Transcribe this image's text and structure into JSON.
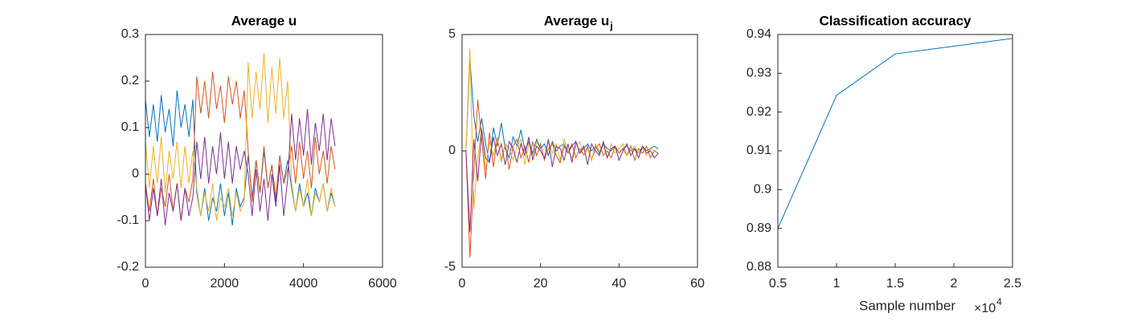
{
  "chart_data": [
    {
      "type": "line",
      "title": "Average u",
      "x": [
        0,
        100,
        200,
        300,
        400,
        500,
        600,
        700,
        800,
        900,
        1000,
        1100,
        1200,
        1300,
        1400,
        1500,
        1600,
        1700,
        1800,
        1900,
        2000,
        2100,
        2200,
        2300,
        2400,
        2500,
        2600,
        2700,
        2800,
        2900,
        3000,
        3100,
        3200,
        3300,
        3400,
        3500,
        3600,
        3700,
        3800,
        3900,
        4000,
        4100,
        4200,
        4300,
        4400,
        4500,
        4600,
        4700,
        4800
      ],
      "series": [
        {
          "color": "#0072bd",
          "values": [
            0.16,
            0.08,
            0.15,
            0.07,
            0.17,
            0.09,
            0.14,
            0.06,
            0.18,
            0.1,
            0.15,
            0.08,
            0.16,
            -0.04,
            -0.09,
            -0.03,
            -0.1,
            -0.05,
            -0.08,
            -0.02,
            -0.09,
            -0.04,
            -0.11,
            -0.03,
            -0.07,
            -0.05,
            0.04,
            -0.05,
            0.03,
            -0.04,
            0.05,
            -0.03,
            0.02,
            -0.06,
            0.04,
            -0.02,
            0.03,
            -0.03,
            -0.08,
            -0.02,
            -0.07,
            -0.04,
            -0.09,
            -0.03,
            -0.06,
            -0.02,
            -0.08,
            -0.04,
            -0.07
          ]
        },
        {
          "color": "#d95319",
          "values": [
            -0.02,
            -0.08,
            -0.01,
            -0.09,
            -0.03,
            -0.07,
            0.0,
            -0.08,
            -0.02,
            -0.1,
            -0.03,
            -0.06,
            -0.01,
            0.21,
            0.13,
            0.2,
            0.12,
            0.22,
            0.14,
            0.19,
            0.11,
            0.21,
            0.15,
            0.2,
            0.12,
            0.18,
            0.05,
            -0.06,
            0.03,
            -0.04,
            0.06,
            -0.03,
            0.02,
            -0.05,
            0.04,
            -0.02,
            0.01,
            0.06,
            -0.02,
            0.07,
            -0.01,
            0.05,
            -0.03,
            0.08,
            0.0,
            0.05,
            -0.02,
            0.06,
            0.01
          ]
        },
        {
          "color": "#edb120",
          "values": [
            0.07,
            -0.03,
            0.06,
            -0.02,
            0.08,
            -0.04,
            0.05,
            -0.01,
            0.07,
            -0.03,
            0.06,
            -0.02,
            0.05,
            -0.03,
            -0.09,
            -0.04,
            -0.08,
            -0.02,
            -0.1,
            -0.05,
            -0.07,
            -0.03,
            -0.09,
            -0.04,
            -0.08,
            -0.06,
            0.24,
            0.12,
            0.22,
            0.14,
            0.26,
            0.11,
            0.23,
            0.13,
            0.25,
            0.12,
            0.2,
            -0.02,
            -0.08,
            -0.03,
            -0.07,
            -0.01,
            -0.09,
            -0.04,
            -0.06,
            -0.02,
            -0.08,
            -0.03,
            -0.07
          ]
        },
        {
          "color": "#7e2f8e",
          "values": [
            -0.02,
            -0.1,
            -0.03,
            -0.09,
            -0.01,
            -0.11,
            -0.04,
            -0.08,
            -0.02,
            -0.1,
            -0.03,
            -0.09,
            -0.05,
            0.07,
            -0.01,
            0.08,
            -0.02,
            0.06,
            0.0,
            0.09,
            -0.01,
            0.07,
            -0.02,
            0.06,
            0.01,
            0.05,
            0.0,
            -0.09,
            0.01,
            -0.08,
            -0.01,
            -0.1,
            0.0,
            -0.07,
            0.02,
            -0.09,
            -0.01,
            0.13,
            0.03,
            0.12,
            0.04,
            0.14,
            0.02,
            0.11,
            0.05,
            0.13,
            0.03,
            0.12,
            0.06
          ]
        }
      ],
      "xlim": [
        0,
        6000
      ],
      "xticks": [
        0,
        2000,
        4000,
        6000
      ],
      "ylim": [
        -0.2,
        0.3
      ],
      "yticks": [
        -0.2,
        -0.1,
        0,
        0.1,
        0.2,
        0.3
      ]
    },
    {
      "type": "line",
      "title": "Average u",
      "title_subscript": "j",
      "x": [
        1,
        2,
        3,
        4,
        5,
        6,
        7,
        8,
        9,
        10,
        11,
        12,
        13,
        14,
        15,
        16,
        17,
        18,
        19,
        20,
        21,
        22,
        23,
        24,
        25,
        26,
        27,
        28,
        29,
        30,
        31,
        32,
        33,
        34,
        35,
        36,
        37,
        38,
        39,
        40,
        41,
        42,
        43,
        44,
        45,
        46,
        47,
        48,
        49,
        50
      ],
      "series": [
        {
          "color": "#0072bd",
          "values": [
            0,
            4.0,
            1.5,
            0.4,
            1.4,
            0.3,
            -0.5,
            1.0,
            0.2,
            1.2,
            0.1,
            -0.3,
            0.6,
            0.2,
            0.9,
            0.0,
            0.4,
            -0.1,
            0.5,
            0.1,
            0.3,
            -0.2,
            0.4,
            0.0,
            0.2,
            0.3,
            -0.1,
            0.2,
            0.4,
            -0.1,
            0.1,
            0.3,
            0.0,
            0.2,
            -0.1,
            0.3,
            0.1,
            0.0,
            0.2,
            -0.1,
            0.1,
            0.2,
            0.0,
            0.1,
            -0.1,
            0.2,
            0.0,
            0.1,
            0.2,
            0.1
          ]
        },
        {
          "color": "#d95319",
          "values": [
            0,
            -4.6,
            -1.0,
            2.2,
            0.5,
            -1.2,
            0.8,
            -0.7,
            0.6,
            -0.4,
            0.3,
            -0.8,
            0.2,
            0.5,
            -0.3,
            0.2,
            -0.5,
            0.4,
            -0.2,
            0.3,
            -0.4,
            0.1,
            0.3,
            -0.2,
            -0.5,
            0.2,
            -0.1,
            0.3,
            -0.3,
            0.1,
            -0.2,
            0.2,
            -0.4,
            0.1,
            0.3,
            -0.2,
            0.0,
            -0.3,
            0.2,
            -0.1,
            0.1,
            -0.2,
            0.2,
            -0.4,
            0.1,
            -0.1,
            0.2,
            -0.3,
            0.0,
            -0.1
          ]
        },
        {
          "color": "#edb120",
          "values": [
            0,
            4.4,
            -2.5,
            -0.3,
            1.0,
            -0.8,
            0.4,
            -0.2,
            0.6,
            -0.5,
            0.3,
            0.1,
            -0.4,
            0.2,
            0.5,
            -0.6,
            0.3,
            -0.2,
            0.4,
            0.0,
            -0.3,
            0.4,
            -0.1,
            0.3,
            -0.4,
            0.5,
            0.0,
            -0.3,
            0.2,
            0.4,
            -0.2,
            0.1,
            -0.4,
            0.3,
            0.0,
            0.2,
            -0.3,
            0.3,
            -0.1,
            0.1,
            0.3,
            -0.2,
            0.0,
            0.2,
            -0.1,
            0.1,
            -0.2,
            0.1,
            0.0,
            0.1
          ]
        },
        {
          "color": "#7e2f8e",
          "values": [
            0,
            -3.5,
            0.5,
            -1.3,
            0.9,
            -0.3,
            -0.5,
            0.6,
            -0.2,
            0.3,
            -0.6,
            0.4,
            0.1,
            -0.5,
            0.3,
            -0.2,
            0.6,
            -0.4,
            0.2,
            0.0,
            -0.3,
            0.5,
            -0.7,
            0.2,
            0.1,
            -0.4,
            0.3,
            -0.5,
            0.4,
            -0.1,
            0.2,
            -0.6,
            0.3,
            0.0,
            -0.2,
            0.4,
            -0.3,
            0.1,
            0.2,
            -0.4,
            0.0,
            0.3,
            -0.2,
            0.1,
            -0.3,
            0.2,
            -0.1,
            0.0,
            -0.3,
            -0.1
          ]
        }
      ],
      "xlim": [
        0,
        60
      ],
      "xticks": [
        0,
        20,
        40,
        60
      ],
      "ylim": [
        -5,
        5
      ],
      "yticks": [
        -5,
        0,
        5
      ]
    },
    {
      "type": "line",
      "title": "Classification accuracy",
      "xlabel": "Sample number",
      "x_multiplier": "×10",
      "x_multiplier_power": "4",
      "x": [
        5000,
        10000,
        15000,
        25000
      ],
      "series": [
        {
          "color": "#0072bd",
          "values": [
            0.89,
            0.9243,
            0.935,
            0.939
          ]
        }
      ],
      "xlim": [
        5000,
        25000
      ],
      "xticks": [
        {
          "value": 5000,
          "label": "0.5"
        },
        {
          "value": 10000,
          "label": "1"
        },
        {
          "value": 15000,
          "label": "1.5"
        },
        {
          "value": 20000,
          "label": "2"
        },
        {
          "value": 25000,
          "label": "2.5"
        }
      ],
      "ylim": [
        0.88,
        0.94
      ],
      "yticks": [
        0.88,
        0.89,
        0.9,
        0.91,
        0.92,
        0.93,
        0.94
      ]
    }
  ]
}
